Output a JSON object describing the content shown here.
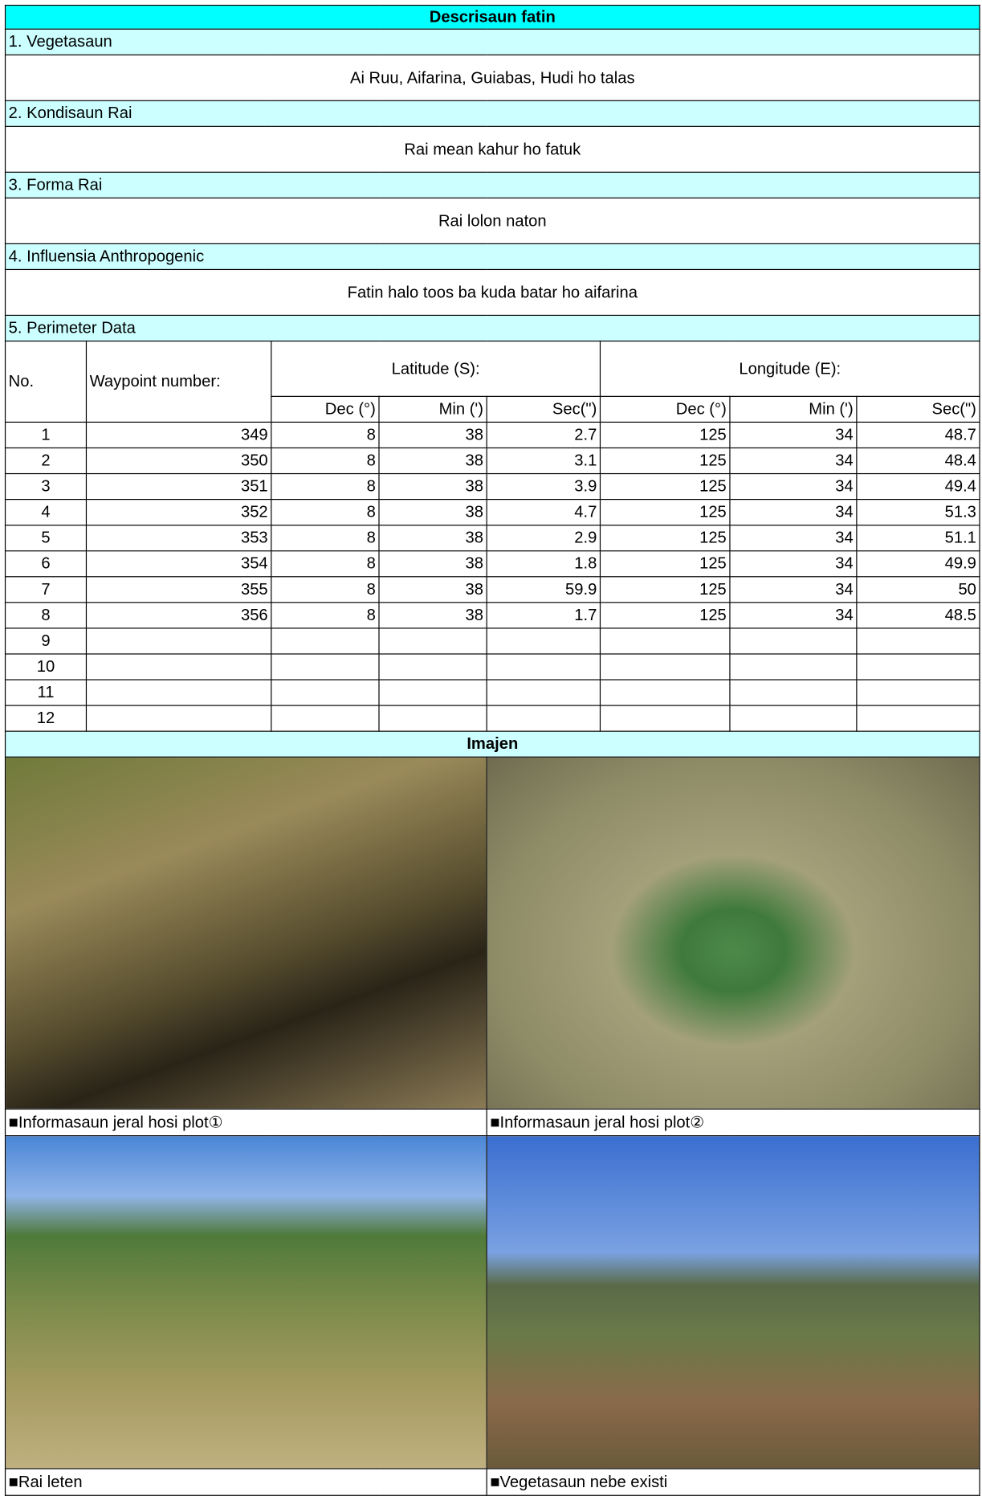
{
  "title": "Descrisaun fatin",
  "sections": [
    {
      "heading": "1. Vegetasaun",
      "text": "Ai Ruu, Aifarina, Guiabas, Hudi ho talas"
    },
    {
      "heading": "2. Kondisaun Rai",
      "text": "Rai mean kahur ho fatuk"
    },
    {
      "heading": "3. Forma Rai",
      "text": "Rai lolon naton"
    },
    {
      "heading": "4.  Influensia Anthropogenic",
      "text": "Fatin halo toos ba kuda batar ho aifarina"
    }
  ],
  "perimeter": {
    "heading": "5. Perimeter Data",
    "no_header": "No.",
    "waypoint_header": "Waypoint number:",
    "latitude_header": "Latitude (S):",
    "longitude_header": "Longitude (E):",
    "sub_headers": [
      "Dec (°)",
      "Min (')",
      "Sec(\")",
      "Dec (°)",
      "Min (')",
      "Sec(\")"
    ],
    "rows": [
      [
        1,
        349,
        8,
        38,
        2.7,
        125,
        34,
        48.7
      ],
      [
        2,
        350,
        8,
        38,
        3.1,
        125,
        34,
        48.4
      ],
      [
        3,
        351,
        8,
        38,
        3.9,
        125,
        34,
        49.4
      ],
      [
        4,
        352,
        8,
        38,
        4.7,
        125,
        34,
        51.3
      ],
      [
        5,
        353,
        8,
        38,
        2.9,
        125,
        34,
        51.1
      ],
      [
        6,
        354,
        8,
        38,
        1.8,
        125,
        34,
        49.9
      ],
      [
        7,
        355,
        8,
        38,
        59.9,
        125,
        34,
        50
      ],
      [
        8,
        356,
        8,
        38,
        1.7,
        125,
        34,
        48.5
      ],
      [
        9
      ],
      [
        10
      ],
      [
        11
      ],
      [
        12
      ]
    ]
  },
  "images": {
    "heading": "Imajen",
    "captions": [
      "■Informasaun jeral hosi plot①",
      "■Informasaun jeral hosi plot②",
      "■Rai leten",
      "■Vegetasaun nebe existi"
    ]
  }
}
